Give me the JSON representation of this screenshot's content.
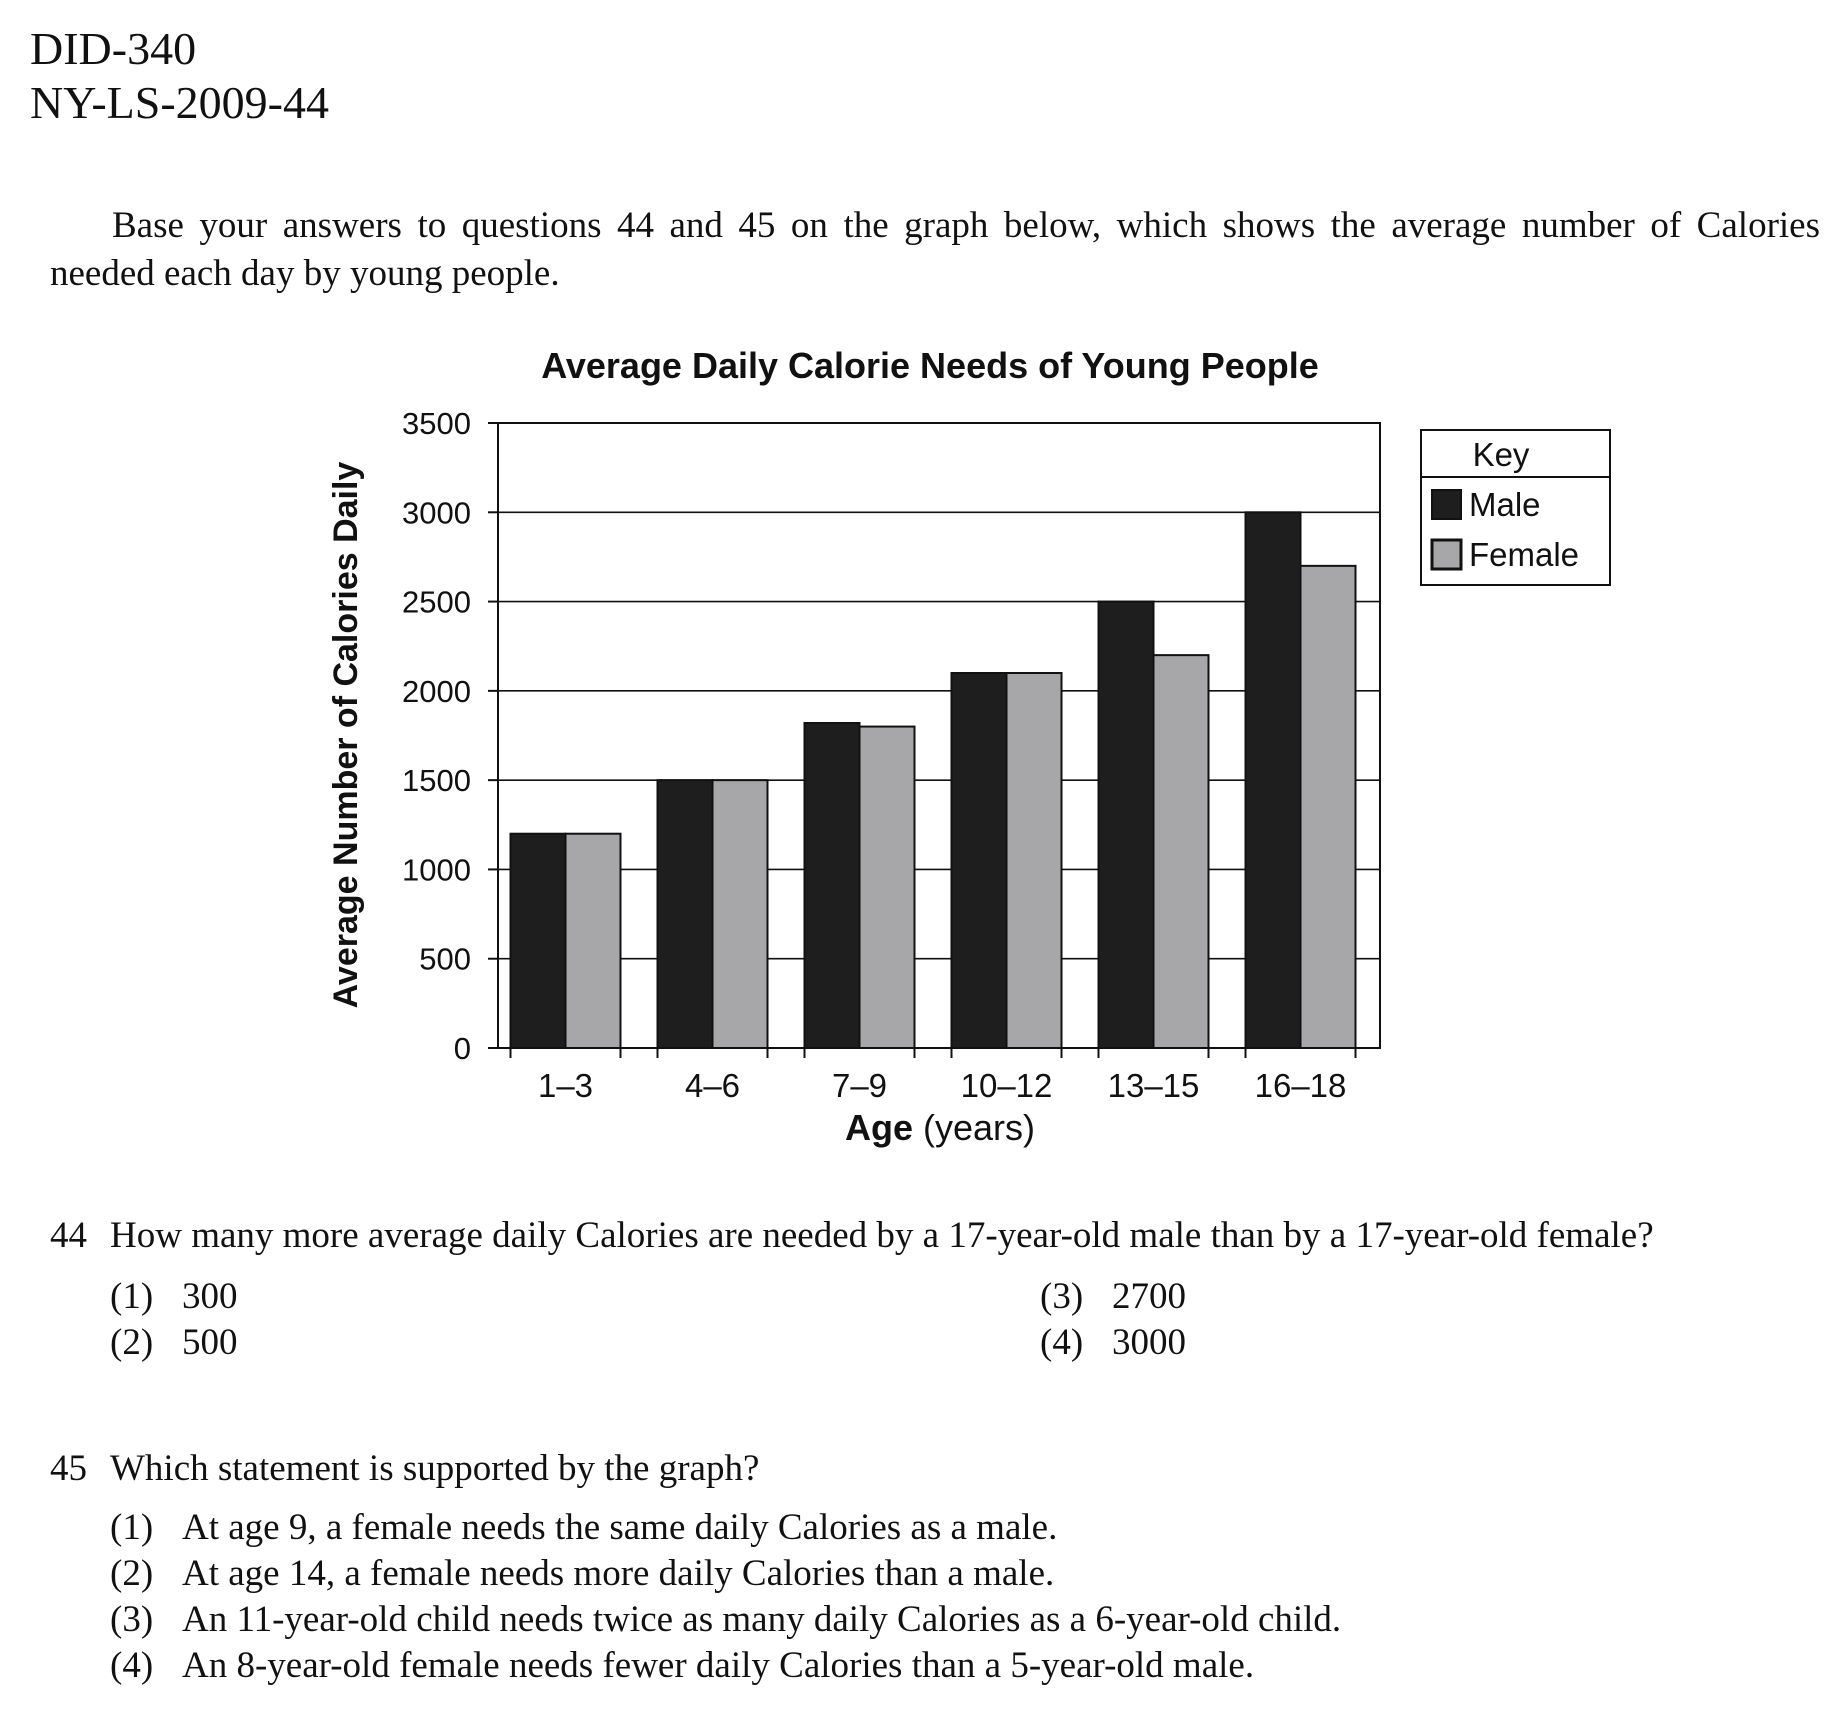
{
  "header": {
    "line1": "DID-340",
    "line2": "NY-LS-2009-44"
  },
  "intro": "Base your answers to questions 44 and 45 on the graph below, which shows the average number of Calories needed each day by young people.",
  "chart_data": {
    "type": "bar",
    "title": "Average Daily Calorie Needs of Young People",
    "xlabel_bold": "Age",
    "xlabel_rest": " (years)",
    "ylabel": "Average Number of Calories Daily",
    "categories": [
      "1–3",
      "4–6",
      "7–9",
      "10–12",
      "13–15",
      "16–18"
    ],
    "series": [
      {
        "name": "Male",
        "color": "#1e1e1e",
        "values": [
          1200,
          1500,
          1820,
          2100,
          2500,
          3000
        ]
      },
      {
        "name": "Female",
        "color": "#a7a7a9",
        "values": [
          1200,
          1500,
          1800,
          2100,
          2200,
          2700
        ]
      }
    ],
    "ylim": [
      0,
      3500
    ],
    "yticks": [
      0,
      500,
      1000,
      1500,
      2000,
      2500,
      3000,
      3500
    ],
    "ytick_labels": [
      "0",
      "500",
      "1000",
      "1500",
      "2000",
      "2500",
      "3000",
      "3500"
    ],
    "grid": true,
    "legend": {
      "title": "Key",
      "placement": "right-top"
    }
  },
  "questions": [
    {
      "number": "44",
      "stem": "How many more average daily Calories are needed by a 17-year-old male than by a 17-year-old female?",
      "options": [
        {
          "num": "(1)",
          "text": "300"
        },
        {
          "num": "(2)",
          "text": "500"
        },
        {
          "num": "(3)",
          "text": "2700"
        },
        {
          "num": "(4)",
          "text": "3000"
        }
      ]
    },
    {
      "number": "45",
      "stem": "Which statement is supported by the graph?",
      "options": [
        {
          "num": "(1)",
          "text": "At age 9, a female needs the same daily Calories as a male."
        },
        {
          "num": "(2)",
          "text": "At age 14, a female needs more daily Calories than a male."
        },
        {
          "num": "(3)",
          "text": "An 11-year-old child needs twice as many daily Calories as a 6-year-old child."
        },
        {
          "num": "(4)",
          "text": "An 8-year-old female needs fewer daily Calories than a 5-year-old male."
        }
      ]
    }
  ]
}
